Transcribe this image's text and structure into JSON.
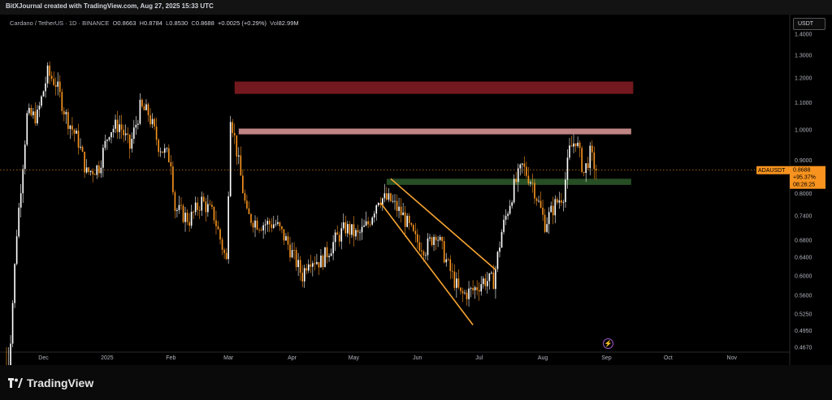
{
  "header": {
    "created_text": "BitXJournal created with TradingView.com, Aug 27, 2025 15:33 UTC"
  },
  "symbol_info": {
    "name": "Cardano / TetherUS · 1D · BINANCE",
    "open_label": "O",
    "open": "0.8663",
    "high_label": "H",
    "high": "0.8784",
    "low_label": "L",
    "low": "0.8530",
    "close_label": "C",
    "close": "0.8688",
    "change": "+0.0025 (+0.29%)",
    "volume_label": "Vol",
    "volume": "82.99M"
  },
  "currency_button": "USDT",
  "price_tag": {
    "symbol": "ADAUSDT",
    "price": "0.8688",
    "change_pct": "+95.37%",
    "countdown": "08:26:25"
  },
  "logo_text": "TradingView",
  "colors": {
    "up": "#ffffff",
    "down": "#f7931e",
    "resistance_high": "#7a1a22",
    "resistance_low": "#c98b8b",
    "support": "#2e5c2a",
    "channel": "#f7a531",
    "price_line": "#f7931e"
  },
  "chart_data": {
    "type": "candlestick",
    "title": "Cardano / TetherUS · 1D · BINANCE",
    "y_scale": "log",
    "ylim": [
      0.467,
      1.44
    ],
    "y_ticks": [
      "1.4000",
      "1.3000",
      "1.2000",
      "1.1000",
      "1.0000",
      "0.9000",
      "0.8000",
      "0.7400",
      "0.6800",
      "0.6400",
      "0.6000",
      "0.5600",
      "0.5250",
      "0.4950",
      "0.4670"
    ],
    "y_tick_values": [
      1.4,
      1.3,
      1.2,
      1.1,
      1.0,
      0.9,
      0.8,
      0.74,
      0.68,
      0.64,
      0.6,
      0.56,
      0.525,
      0.495,
      0.467
    ],
    "x_ticks": [
      "Dec",
      "2025",
      "Feb",
      "Mar",
      "Apr",
      "May",
      "Jun",
      "Jul",
      "Aug",
      "Sep",
      "Oct",
      "Nov"
    ],
    "x_tick_dates": [
      "2024-12-01",
      "2025-01-01",
      "2025-02-01",
      "2025-03-01",
      "2025-04-01",
      "2025-05-01",
      "2025-06-01",
      "2025-07-01",
      "2025-08-01",
      "2025-09-01",
      "2025-10-01",
      "2025-11-01"
    ],
    "xlim": [
      "2024-11-13",
      "2025-11-26"
    ],
    "grid": false,
    "last_close": 0.8688,
    "zones": [
      {
        "kind": "resistance",
        "start": "2025-03-04",
        "end": "2025-09-14",
        "low": 1.135,
        "high": 1.185
      },
      {
        "kind": "resistance",
        "start": "2025-03-06",
        "end": "2025-09-13",
        "low": 0.985,
        "high": 1.005
      },
      {
        "kind": "support",
        "start": "2025-05-17",
        "end": "2025-09-13",
        "low": 0.825,
        "high": 0.843
      }
    ],
    "channel_lines": [
      {
        "from": [
          "2025-05-14",
          0.775
        ],
        "to": [
          "2025-06-28",
          0.505
        ]
      },
      {
        "from": [
          "2025-05-19",
          0.843
        ],
        "to": [
          "2025-07-09",
          0.613
        ]
      }
    ],
    "anchors": [
      [
        "2024-11-13",
        0.38
      ],
      [
        "2024-11-18",
        0.7
      ],
      [
        "2024-11-23",
        1.05
      ],
      [
        "2024-11-28",
        1.05
      ],
      [
        "2024-12-03",
        1.22
      ],
      [
        "2024-12-07",
        1.18
      ],
      [
        "2024-12-12",
        1.05
      ],
      [
        "2024-12-18",
        0.96
      ],
      [
        "2024-12-22",
        0.86
      ],
      [
        "2024-12-28",
        0.88
      ],
      [
        "2025-01-02",
        1.0
      ],
      [
        "2025-01-07",
        1.02
      ],
      [
        "2025-01-12",
        0.94
      ],
      [
        "2025-01-17",
        1.08
      ],
      [
        "2025-01-21",
        1.06
      ],
      [
        "2025-01-26",
        0.95
      ],
      [
        "2025-02-01",
        0.9
      ],
      [
        "2025-02-03",
        0.76
      ],
      [
        "2025-02-10",
        0.73
      ],
      [
        "2025-02-16",
        0.78
      ],
      [
        "2025-02-22",
        0.74
      ],
      [
        "2025-02-28",
        0.63
      ],
      [
        "2025-03-02",
        1.06
      ],
      [
        "2025-03-05",
        0.93
      ],
      [
        "2025-03-10",
        0.74
      ],
      [
        "2025-03-16",
        0.72
      ],
      [
        "2025-03-24",
        0.72
      ],
      [
        "2025-03-29",
        0.68
      ],
      [
        "2025-04-06",
        0.6
      ],
      [
        "2025-04-09",
        0.64
      ],
      [
        "2025-04-15",
        0.63
      ],
      [
        "2025-04-22",
        0.68
      ],
      [
        "2025-04-27",
        0.71
      ],
      [
        "2025-05-03",
        0.69
      ],
      [
        "2025-05-08",
        0.72
      ],
      [
        "2025-05-13",
        0.79
      ],
      [
        "2025-05-19",
        0.78
      ],
      [
        "2025-05-25",
        0.74
      ],
      [
        "2025-05-31",
        0.68
      ],
      [
        "2025-06-05",
        0.66
      ],
      [
        "2025-06-10",
        0.7
      ],
      [
        "2025-06-16",
        0.62
      ],
      [
        "2025-06-22",
        0.56
      ],
      [
        "2025-06-28",
        0.57
      ],
      [
        "2025-07-03",
        0.59
      ],
      [
        "2025-07-08",
        0.59
      ],
      [
        "2025-07-12",
        0.7
      ],
      [
        "2025-07-18",
        0.82
      ],
      [
        "2025-07-22",
        0.88
      ],
      [
        "2025-07-27",
        0.83
      ],
      [
        "2025-08-02",
        0.72
      ],
      [
        "2025-08-07",
        0.77
      ],
      [
        "2025-08-11",
        0.8
      ],
      [
        "2025-08-14",
        0.93
      ],
      [
        "2025-08-17",
        0.97
      ],
      [
        "2025-08-21",
        0.86
      ],
      [
        "2025-08-24",
        0.92
      ],
      [
        "2025-08-27",
        0.8688
      ]
    ]
  }
}
